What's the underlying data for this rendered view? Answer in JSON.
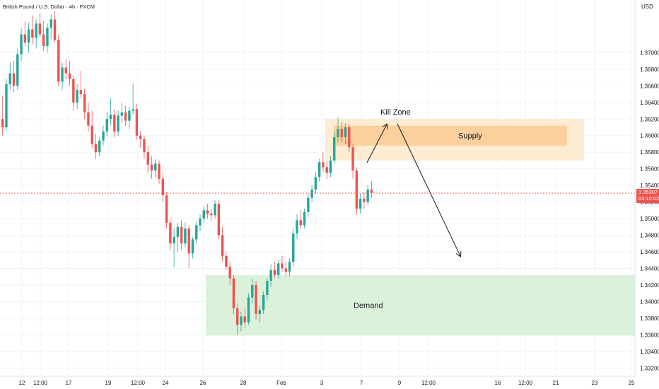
{
  "header": {
    "symbol_label": "British Pound / U.S. Dollar · 4h · FXCM",
    "currency": "USD"
  },
  "price_tag": {
    "price": "1.35307",
    "countdown": "03:10:02",
    "color": "#ef5350"
  },
  "colors": {
    "up": "#26a69a",
    "down": "#ef5350",
    "grid": "#f0f3fa",
    "supply_outer": "#fde5c4",
    "supply_inner": "#fbc78a",
    "demand": "#d6efd4",
    "arrow": "#131722"
  },
  "zones": [
    {
      "name": "supply-outer",
      "label": "",
      "top": 1.362,
      "bottom": 1.357,
      "fill": "#fde5c4"
    },
    {
      "name": "supply-inner",
      "label": "Supply",
      "top": 1.3612,
      "bottom": 1.3588,
      "fill": "#fbc78a"
    },
    {
      "name": "demand",
      "label": "Demand",
      "top": 1.3432,
      "bottom": 1.3359,
      "fill": "#d6efd4"
    }
  ],
  "annotations": [
    {
      "name": "kill-zone-label",
      "text": "Kill Zone"
    }
  ],
  "chart_data": {
    "type": "candlestick",
    "symbol": "GBPUSD",
    "timeframe": "4h",
    "ylim": [
      1.331,
      1.376
    ],
    "y_ticks": [
      "1.37000",
      "1.36800",
      "1.36600",
      "1.36400",
      "1.36200",
      "1.36000",
      "1.35800",
      "1.35600",
      "1.35400",
      "1.35200",
      "1.35000",
      "1.34800",
      "1.34600",
      "1.34400",
      "1.34200",
      "1.34000",
      "1.33800",
      "1.33600",
      "1.33400",
      "1.33200"
    ],
    "x_ticks": [
      "12",
      "12:00",
      "17",
      "19",
      "12:00",
      "24",
      "26",
      "28",
      "Feb",
      "3",
      "7",
      "9",
      "12:00",
      "16",
      "12:00",
      "21",
      "23",
      "25"
    ],
    "last_price": 1.35307,
    "candle_seed_open": 1.362,
    "candles": [
      [
        1.362,
        1.3648,
        1.36,
        1.361
      ],
      [
        1.361,
        1.3668,
        1.3606,
        1.3662
      ],
      [
        1.3662,
        1.3688,
        1.3655,
        1.3675
      ],
      [
        1.3675,
        1.369,
        1.3652,
        1.366
      ],
      [
        1.366,
        1.3705,
        1.3655,
        1.3698
      ],
      [
        1.3698,
        1.373,
        1.369,
        1.3722
      ],
      [
        1.3722,
        1.3738,
        1.3708,
        1.3712
      ],
      [
        1.3712,
        1.3736,
        1.37,
        1.3728
      ],
      [
        1.3728,
        1.3745,
        1.371,
        1.3718
      ],
      [
        1.3718,
        1.374,
        1.3705,
        1.3735
      ],
      [
        1.3735,
        1.3748,
        1.3718,
        1.3722
      ],
      [
        1.3722,
        1.3738,
        1.3702,
        1.3708
      ],
      [
        1.3708,
        1.3735,
        1.37,
        1.373
      ],
      [
        1.373,
        1.3746,
        1.3716,
        1.374
      ],
      [
        1.374,
        1.375,
        1.3712,
        1.3715
      ],
      [
        1.3715,
        1.3722,
        1.366,
        1.3665
      ],
      [
        1.3665,
        1.3688,
        1.3655,
        1.3682
      ],
      [
        1.3682,
        1.3692,
        1.3668,
        1.3675
      ],
      [
        1.3675,
        1.369,
        1.366,
        1.3668
      ],
      [
        1.3668,
        1.3672,
        1.363,
        1.364
      ],
      [
        1.364,
        1.3662,
        1.3632,
        1.3655
      ],
      [
        1.3655,
        1.3678,
        1.3645,
        1.365
      ],
      [
        1.365,
        1.3656,
        1.362,
        1.3628
      ],
      [
        1.3628,
        1.364,
        1.3605,
        1.3612
      ],
      [
        1.3612,
        1.363,
        1.3585,
        1.359
      ],
      [
        1.359,
        1.3602,
        1.3572,
        1.358
      ],
      [
        1.358,
        1.3598,
        1.3575,
        1.3594
      ],
      [
        1.3594,
        1.3612,
        1.3588,
        1.3605
      ],
      [
        1.3605,
        1.3628,
        1.36,
        1.362
      ],
      [
        1.362,
        1.3645,
        1.3612,
        1.3625
      ],
      [
        1.3625,
        1.3632,
        1.3598,
        1.3605
      ],
      [
        1.3605,
        1.363,
        1.36,
        1.3624
      ],
      [
        1.3624,
        1.364,
        1.3615,
        1.3628
      ],
      [
        1.3628,
        1.3636,
        1.3612,
        1.3618
      ],
      [
        1.3618,
        1.3635,
        1.3608,
        1.363
      ],
      [
        1.363,
        1.3662,
        1.3625,
        1.3632
      ],
      [
        1.3632,
        1.3638,
        1.3595,
        1.36
      ],
      [
        1.36,
        1.3605,
        1.3585,
        1.3596
      ],
      [
        1.3596,
        1.36,
        1.3572,
        1.358
      ],
      [
        1.358,
        1.3588,
        1.3555,
        1.3565
      ],
      [
        1.3565,
        1.3575,
        1.3548,
        1.3558
      ],
      [
        1.3558,
        1.3572,
        1.355,
        1.3566
      ],
      [
        1.3566,
        1.357,
        1.3542,
        1.3548
      ],
      [
        1.3548,
        1.3555,
        1.352,
        1.3528
      ],
      [
        1.3528,
        1.3532,
        1.3488,
        1.3495
      ],
      [
        1.3495,
        1.35,
        1.3462,
        1.347
      ],
      [
        1.347,
        1.3488,
        1.3442,
        1.3478
      ],
      [
        1.3478,
        1.3495,
        1.346,
        1.349
      ],
      [
        1.349,
        1.3498,
        1.3462,
        1.347
      ],
      [
        1.347,
        1.3495,
        1.3465,
        1.3488
      ],
      [
        1.3488,
        1.3492,
        1.344,
        1.3458
      ],
      [
        1.3458,
        1.3478,
        1.3452,
        1.3475
      ],
      [
        1.3475,
        1.3496,
        1.347,
        1.3492
      ],
      [
        1.3492,
        1.3505,
        1.3485,
        1.35
      ],
      [
        1.35,
        1.3515,
        1.3495,
        1.351
      ],
      [
        1.351,
        1.3518,
        1.35,
        1.3506
      ],
      [
        1.3506,
        1.3512,
        1.3498,
        1.3504
      ],
      [
        1.3504,
        1.3522,
        1.35,
        1.3518
      ],
      [
        1.3518,
        1.3522,
        1.3475,
        1.348
      ],
      [
        1.348,
        1.349,
        1.3448,
        1.3455
      ],
      [
        1.3455,
        1.346,
        1.3438,
        1.3442
      ],
      [
        1.3442,
        1.3448,
        1.342,
        1.3428
      ],
      [
        1.3428,
        1.3432,
        1.3385,
        1.3392
      ],
      [
        1.3392,
        1.3398,
        1.336,
        1.3372
      ],
      [
        1.3372,
        1.3388,
        1.3364,
        1.3382
      ],
      [
        1.3382,
        1.3392,
        1.3368,
        1.3375
      ],
      [
        1.3375,
        1.341,
        1.3372,
        1.3405
      ],
      [
        1.3405,
        1.3428,
        1.3398,
        1.342
      ],
      [
        1.342,
        1.3425,
        1.3378,
        1.3385
      ],
      [
        1.3385,
        1.3395,
        1.3375,
        1.339
      ],
      [
        1.339,
        1.3412,
        1.3385,
        1.3408
      ],
      [
        1.3408,
        1.3428,
        1.3402,
        1.3425
      ],
      [
        1.3425,
        1.3445,
        1.3418,
        1.3438
      ],
      [
        1.3438,
        1.3448,
        1.3428,
        1.3432
      ],
      [
        1.3432,
        1.345,
        1.3428,
        1.3446
      ],
      [
        1.3446,
        1.3455,
        1.3436,
        1.344
      ],
      [
        1.344,
        1.3448,
        1.343,
        1.3436
      ],
      [
        1.3436,
        1.3452,
        1.343,
        1.3448
      ],
      [
        1.3448,
        1.3488,
        1.3442,
        1.3482
      ],
      [
        1.3482,
        1.3505,
        1.3475,
        1.3498
      ],
      [
        1.3498,
        1.351,
        1.3488,
        1.3492
      ],
      [
        1.3492,
        1.3512,
        1.3488,
        1.3508
      ],
      [
        1.3508,
        1.353,
        1.3502,
        1.3525
      ],
      [
        1.3525,
        1.354,
        1.352,
        1.3535
      ],
      [
        1.3535,
        1.3556,
        1.353,
        1.355
      ],
      [
        1.355,
        1.3572,
        1.3545,
        1.3568
      ],
      [
        1.3568,
        1.358,
        1.3556,
        1.3562
      ],
      [
        1.3562,
        1.357,
        1.3548,
        1.3555
      ],
      [
        1.3555,
        1.3575,
        1.355,
        1.357
      ],
      [
        1.357,
        1.3604,
        1.3566,
        1.3598
      ],
      [
        1.3598,
        1.3622,
        1.3592,
        1.3608
      ],
      [
        1.3608,
        1.3616,
        1.3592,
        1.3598
      ],
      [
        1.3598,
        1.3615,
        1.359,
        1.361
      ],
      [
        1.361,
        1.3614,
        1.358,
        1.3586
      ],
      [
        1.3586,
        1.359,
        1.3548,
        1.3558
      ],
      [
        1.3558,
        1.3562,
        1.3505,
        1.3512
      ],
      [
        1.3512,
        1.353,
        1.3506,
        1.3524
      ],
      [
        1.3524,
        1.3532,
        1.3512,
        1.352
      ],
      [
        1.352,
        1.354,
        1.3516,
        1.3535
      ],
      [
        1.3535,
        1.3545,
        1.3525,
        1.3531
      ]
    ]
  }
}
